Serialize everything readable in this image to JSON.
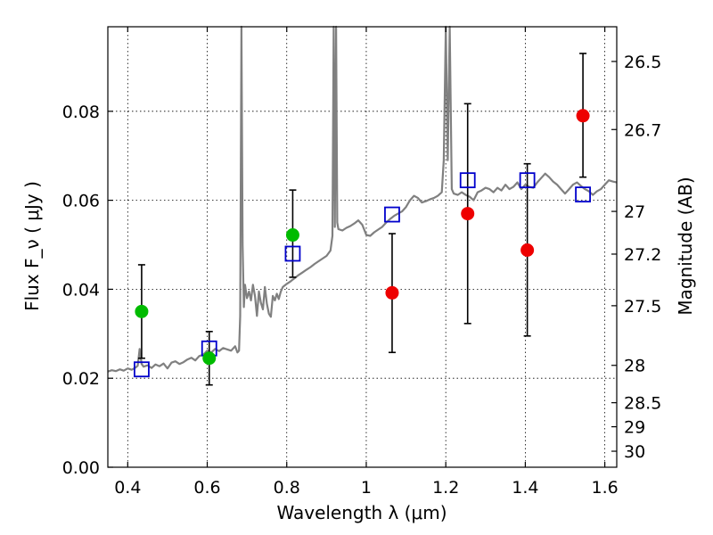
{
  "chart_data": {
    "type": "scatter",
    "xlabel": "Wavelength  λ (μm)",
    "ylabel": "Flux  F_ν  ( μJy )",
    "y2label": "Magnitude (AB)",
    "xlim": [
      0.35,
      1.63
    ],
    "ylim": [
      0.0,
      0.099
    ],
    "grid": true,
    "x_ticks": [
      0.4,
      0.6,
      0.8,
      1.0,
      1.2,
      1.4,
      1.6
    ],
    "x_tick_labels": [
      "0.4",
      "0.6",
      "0.8",
      "1",
      "1.2",
      "1.4",
      "1.6"
    ],
    "y_ticks": [
      0.0,
      0.02,
      0.04,
      0.06,
      0.08
    ],
    "y_tick_labels": [
      "0.00",
      "0.02",
      "0.04",
      "0.06",
      "0.08"
    ],
    "y2_ticks": [
      {
        "label": "26.5",
        "flux": 0.0912
      },
      {
        "label": "26.7",
        "flux": 0.0759
      },
      {
        "label": "27",
        "flux": 0.0575
      },
      {
        "label": "27.2",
        "flux": 0.0479
      },
      {
        "label": "27.5",
        "flux": 0.0363
      },
      {
        "label": "28",
        "flux": 0.0229
      },
      {
        "label": "28.5",
        "flux": 0.0145
      },
      {
        "label": "29",
        "flux": 0.0091
      },
      {
        "label": "30",
        "flux": 0.0036
      }
    ],
    "colors": {
      "spectrum": "#808080",
      "green": "#00bb00",
      "red": "#ee0000",
      "model": "#0000cc",
      "errorbar": "#000000"
    },
    "spectrum": [
      [
        0.35,
        0.0215
      ],
      [
        0.36,
        0.0218
      ],
      [
        0.37,
        0.0216
      ],
      [
        0.38,
        0.022
      ],
      [
        0.39,
        0.0217
      ],
      [
        0.4,
        0.0222
      ],
      [
        0.41,
        0.0219
      ],
      [
        0.42,
        0.0224
      ],
      [
        0.425,
        0.0228
      ],
      [
        0.43,
        0.0266
      ],
      [
        0.435,
        0.0232
      ],
      [
        0.44,
        0.0226
      ],
      [
        0.45,
        0.0229
      ],
      [
        0.46,
        0.0223
      ],
      [
        0.47,
        0.0231
      ],
      [
        0.48,
        0.0227
      ],
      [
        0.49,
        0.0233
      ],
      [
        0.5,
        0.0222
      ],
      [
        0.51,
        0.0235
      ],
      [
        0.52,
        0.0238
      ],
      [
        0.53,
        0.0232
      ],
      [
        0.54,
        0.0236
      ],
      [
        0.55,
        0.0242
      ],
      [
        0.56,
        0.0246
      ],
      [
        0.57,
        0.024
      ],
      [
        0.58,
        0.025
      ],
      [
        0.59,
        0.0253
      ],
      [
        0.6,
        0.0262
      ],
      [
        0.61,
        0.0258
      ],
      [
        0.62,
        0.0266
      ],
      [
        0.63,
        0.0261
      ],
      [
        0.64,
        0.0268
      ],
      [
        0.65,
        0.0265
      ],
      [
        0.66,
        0.0262
      ],
      [
        0.67,
        0.0272
      ],
      [
        0.676,
        0.0258
      ],
      [
        0.68,
        0.0262
      ],
      [
        0.683,
        0.034
      ],
      [
        0.686,
        0.099
      ],
      [
        0.689,
        0.05
      ],
      [
        0.692,
        0.036
      ],
      [
        0.695,
        0.041
      ],
      [
        0.7,
        0.038
      ],
      [
        0.705,
        0.0395
      ],
      [
        0.71,
        0.0375
      ],
      [
        0.715,
        0.041
      ],
      [
        0.72,
        0.0385
      ],
      [
        0.725,
        0.034
      ],
      [
        0.73,
        0.0395
      ],
      [
        0.735,
        0.037
      ],
      [
        0.74,
        0.0355
      ],
      [
        0.745,
        0.0405
      ],
      [
        0.75,
        0.0368
      ],
      [
        0.755,
        0.0345
      ],
      [
        0.76,
        0.0338
      ],
      [
        0.765,
        0.0385
      ],
      [
        0.77,
        0.0375
      ],
      [
        0.775,
        0.039
      ],
      [
        0.78,
        0.0378
      ],
      [
        0.785,
        0.0395
      ],
      [
        0.79,
        0.0405
      ],
      [
        0.8,
        0.0412
      ],
      [
        0.81,
        0.0418
      ],
      [
        0.82,
        0.0425
      ],
      [
        0.83,
        0.0432
      ],
      [
        0.84,
        0.0438
      ],
      [
        0.85,
        0.0444
      ],
      [
        0.86,
        0.045
      ],
      [
        0.87,
        0.0457
      ],
      [
        0.88,
        0.0463
      ],
      [
        0.89,
        0.0469
      ],
      [
        0.9,
        0.0475
      ],
      [
        0.91,
        0.0487
      ],
      [
        0.915,
        0.052
      ],
      [
        0.918,
        0.099
      ],
      [
        0.921,
        0.054
      ],
      [
        0.924,
        0.099
      ],
      [
        0.927,
        0.055
      ],
      [
        0.93,
        0.0535
      ],
      [
        0.94,
        0.0532
      ],
      [
        0.95,
        0.0538
      ],
      [
        0.96,
        0.0542
      ],
      [
        0.97,
        0.0548
      ],
      [
        0.98,
        0.0555
      ],
      [
        0.99,
        0.0545
      ],
      [
        1.0,
        0.0522
      ],
      [
        1.01,
        0.052
      ],
      [
        1.02,
        0.0528
      ],
      [
        1.03,
        0.0534
      ],
      [
        1.04,
        0.054
      ],
      [
        1.05,
        0.055
      ],
      [
        1.06,
        0.0558
      ],
      [
        1.07,
        0.0565
      ],
      [
        1.08,
        0.057
      ],
      [
        1.09,
        0.0575
      ],
      [
        1.1,
        0.0585
      ],
      [
        1.11,
        0.06
      ],
      [
        1.12,
        0.061
      ],
      [
        1.13,
        0.0605
      ],
      [
        1.14,
        0.0595
      ],
      [
        1.15,
        0.0598
      ],
      [
        1.16,
        0.0602
      ],
      [
        1.17,
        0.0605
      ],
      [
        1.18,
        0.061
      ],
      [
        1.19,
        0.0618
      ],
      [
        1.195,
        0.069
      ],
      [
        1.2,
        0.099
      ],
      [
        1.205,
        0.069
      ],
      [
        1.21,
        0.099
      ],
      [
        1.215,
        0.0625
      ],
      [
        1.22,
        0.0615
      ],
      [
        1.23,
        0.0612
      ],
      [
        1.24,
        0.0618
      ],
      [
        1.25,
        0.0612
      ],
      [
        1.26,
        0.0608
      ],
      [
        1.27,
        0.06
      ],
      [
        1.28,
        0.0618
      ],
      [
        1.29,
        0.0622
      ],
      [
        1.3,
        0.0628
      ],
      [
        1.31,
        0.0625
      ],
      [
        1.32,
        0.0618
      ],
      [
        1.33,
        0.0628
      ],
      [
        1.34,
        0.0622
      ],
      [
        1.35,
        0.0635
      ],
      [
        1.36,
        0.0625
      ],
      [
        1.37,
        0.063
      ],
      [
        1.38,
        0.064
      ],
      [
        1.39,
        0.0625
      ],
      [
        1.4,
        0.0635
      ],
      [
        1.41,
        0.063
      ],
      [
        1.42,
        0.0628
      ],
      [
        1.43,
        0.064
      ],
      [
        1.44,
        0.065
      ],
      [
        1.45,
        0.066
      ],
      [
        1.46,
        0.0652
      ],
      [
        1.47,
        0.0642
      ],
      [
        1.48,
        0.0635
      ],
      [
        1.49,
        0.0625
      ],
      [
        1.5,
        0.0615
      ],
      [
        1.51,
        0.0625
      ],
      [
        1.52,
        0.0635
      ],
      [
        1.53,
        0.064
      ],
      [
        1.54,
        0.0632
      ],
      [
        1.55,
        0.0625
      ],
      [
        1.56,
        0.062
      ],
      [
        1.57,
        0.0612
      ],
      [
        1.58,
        0.062
      ],
      [
        1.59,
        0.0625
      ],
      [
        1.6,
        0.0635
      ],
      [
        1.61,
        0.0645
      ],
      [
        1.62,
        0.0642
      ],
      [
        1.63,
        0.064
      ]
    ],
    "observed": [
      {
        "x": 0.435,
        "y": 0.035,
        "err_low": 0.0245,
        "err_high": 0.0455,
        "color": "green"
      },
      {
        "x": 0.605,
        "y": 0.0245,
        "err_low": 0.0185,
        "err_high": 0.0305,
        "color": "green"
      },
      {
        "x": 0.815,
        "y": 0.0522,
        "err_low": 0.0427,
        "err_high": 0.0623,
        "color": "green"
      },
      {
        "x": 1.065,
        "y": 0.0392,
        "err_low": 0.0258,
        "err_high": 0.0525,
        "color": "red"
      },
      {
        "x": 1.255,
        "y": 0.057,
        "err_low": 0.0323,
        "err_high": 0.0817,
        "color": "red"
      },
      {
        "x": 1.405,
        "y": 0.0488,
        "err_low": 0.0295,
        "err_high": 0.0682,
        "color": "red"
      },
      {
        "x": 1.545,
        "y": 0.079,
        "err_low": 0.0652,
        "err_high": 0.093,
        "color": "red"
      }
    ],
    "model_photometry": [
      {
        "x": 0.435,
        "y": 0.022
      },
      {
        "x": 0.605,
        "y": 0.0267
      },
      {
        "x": 0.815,
        "y": 0.048
      },
      {
        "x": 1.065,
        "y": 0.0568
      },
      {
        "x": 1.255,
        "y": 0.0645
      },
      {
        "x": 1.405,
        "y": 0.0645
      },
      {
        "x": 1.545,
        "y": 0.0613
      }
    ]
  }
}
